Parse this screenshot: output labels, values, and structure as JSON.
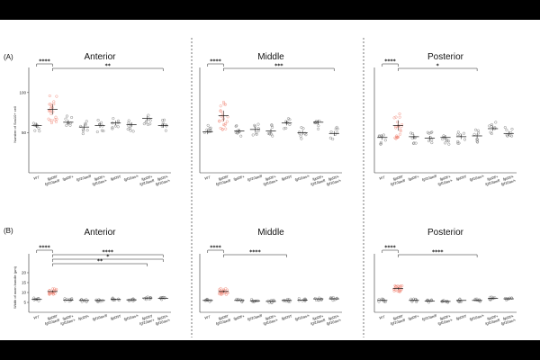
{
  "figure": {
    "row_labels": [
      "(A)",
      "(B)"
    ],
    "colors": {
      "background": "#000000",
      "canvas": "#ffffff",
      "mutant": "#f08a7a",
      "control": "#777777",
      "axis": "#333333"
    }
  },
  "chart_data": [
    {
      "type": "scatter",
      "row": 0,
      "col": 0,
      "title": "Anterior",
      "ylabel": "Number of Sox10+ cell",
      "ylim": [
        0,
        120
      ],
      "yticks": [
        50,
        100
      ],
      "categories": [
        "WT",
        "fgd2f/f fgf10ae/fl",
        "fgd2f/+",
        "fgf10ae/fl",
        "fgd2f/+ fgf10ae/+",
        "fgd2f/f",
        "fgf10ae/+",
        "fgd2f/+ fgf10ae/fl",
        "fgd2f/+ fgf10ae/+"
      ],
      "means": [
        59,
        79,
        63,
        57,
        59,
        62,
        60,
        68,
        59
      ],
      "highlight_index": 1,
      "significance": [
        {
          "from": 0,
          "to": 1,
          "label": "****"
        },
        {
          "from": 1,
          "to": 8,
          "label": "**"
        }
      ]
    },
    {
      "type": "scatter",
      "row": 0,
      "col": 1,
      "title": "Middle",
      "ylabel": "",
      "ylim": [
        0,
        120
      ],
      "yticks": [],
      "categories": [
        "WT",
        "fgd2f/f fgf10ae/fl",
        "fgd2f/+",
        "fgf10ae/fl",
        "fgd2f/+ fgf10ae/+",
        "fgd2f/f",
        "fgf10ae/+",
        "fgd2f/+ fgf10ae/fl",
        "fgd2f/+ fgf10ae/+"
      ],
      "means": [
        51,
        71,
        52,
        54,
        52,
        62,
        50,
        63,
        49
      ],
      "highlight_index": 1,
      "significance": [
        {
          "from": 0,
          "to": 1,
          "label": "****"
        },
        {
          "from": 1,
          "to": 8,
          "label": "***"
        }
      ]
    },
    {
      "type": "scatter",
      "row": 0,
      "col": 2,
      "title": "Posterior",
      "ylabel": "",
      "ylim": [
        0,
        120
      ],
      "yticks": [],
      "categories": [
        "WT",
        "fgd2f/f fgf10ae/fl",
        "fgd2f/+",
        "fgf10ae/fl",
        "fgd2f/+ fgf10ae/+",
        "fgd2f/f",
        "fgf10ae/+",
        "fgd2f/+ fgf10ae/fl",
        "fgd2f/+ fgf10ae/+"
      ],
      "means": [
        44,
        59,
        45,
        43,
        44,
        45,
        46,
        55,
        49
      ],
      "highlight_index": 1,
      "significance": [
        {
          "from": 0,
          "to": 1,
          "label": "****"
        },
        {
          "from": 1,
          "to": 6,
          "label": "*"
        }
      ]
    },
    {
      "type": "scatter",
      "row": 1,
      "col": 0,
      "title": "Anterior",
      "ylabel": "Width of axon bundle (µm)",
      "ylim": [
        0,
        25
      ],
      "yticks": [
        5,
        10,
        15,
        20
      ],
      "categories": [
        "WT",
        "fgd2f/f fgf10ae/fl",
        "fgd2f/+ fgf10ae/+",
        "fgd2f/+",
        "fgf10ae/fl",
        "fgd2f/f",
        "fgf10ae/+",
        "fgd2f/f fgf10ae/+",
        "fgd2f/+ fgf10ae/+"
      ],
      "means": [
        6.5,
        10.5,
        6.2,
        6.0,
        6.0,
        6.5,
        6.3,
        7.2,
        7.0
      ],
      "highlight_index": 1,
      "significance": [
        {
          "from": 0,
          "to": 1,
          "label": "****"
        },
        {
          "from": 1,
          "to": 8,
          "label": "****"
        },
        {
          "from": 1,
          "to": 8,
          "label": "*"
        },
        {
          "from": 1,
          "to": 7,
          "label": "**"
        }
      ]
    },
    {
      "type": "scatter",
      "row": 1,
      "col": 1,
      "title": "Middle",
      "ylabel": "",
      "ylim": [
        0,
        25
      ],
      "yticks": [],
      "categories": [
        "WT",
        "fgd2f/f fgf10ae/fl",
        "fgd2f/+",
        "fgf10ae/fl",
        "fgd2f/+ fgf10ae/+",
        "fgd2f/f",
        "fgf10ae/+",
        "fgd2f/+ fgf10ae/fl",
        "fgd2f/+ fgf10ae/+"
      ],
      "means": [
        6.0,
        10.5,
        6.0,
        5.8,
        5.5,
        6.0,
        6.2,
        6.8,
        6.8
      ],
      "highlight_index": 1,
      "significance": [
        {
          "from": 0,
          "to": 1,
          "label": "****"
        },
        {
          "from": 1,
          "to": 5,
          "label": "****"
        }
      ]
    },
    {
      "type": "scatter",
      "row": 1,
      "col": 2,
      "title": "Posterior",
      "ylabel": "",
      "ylim": [
        0,
        25
      ],
      "yticks": [],
      "categories": [
        "WT",
        "fgd2f/f fgf10ae/fl",
        "fgd2f/+",
        "fgf10ae/fl",
        "fgd2f/+ fgf10ae/+",
        "fgd2f/f",
        "fgf10ae/+",
        "fgd2f/+ fgf10ae/fl",
        "fgd2f/+ fgf10ae/+"
      ],
      "means": [
        6.0,
        12.0,
        6.0,
        5.6,
        5.5,
        6.0,
        6.0,
        7.0,
        6.8
      ],
      "highlight_index": 1,
      "significance": [
        {
          "from": 0,
          "to": 1,
          "label": "****"
        },
        {
          "from": 1,
          "to": 6,
          "label": "****"
        }
      ]
    }
  ]
}
